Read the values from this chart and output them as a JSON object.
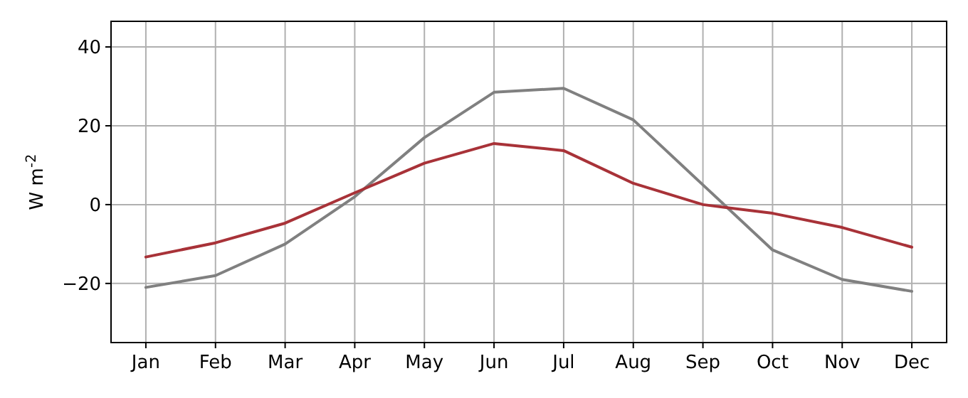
{
  "chart_data": {
    "type": "line",
    "ylabel": "W m$^{-2}$",
    "categories": [
      "Jan",
      "Feb",
      "Mar",
      "Apr",
      "May",
      "Jun",
      "Jul",
      "Aug",
      "Sep",
      "Oct",
      "Nov",
      "Dec"
    ],
    "series": [
      {
        "color": "#808080",
        "values": [
          -21,
          -18,
          -10,
          2,
          17,
          28.5,
          29.5,
          21.5,
          5,
          -11.5,
          -19,
          -22
        ]
      },
      {
        "color": "#a83238",
        "values": [
          -13.3,
          -9.7,
          -4.7,
          3,
          10.5,
          15.5,
          13.7,
          5.4,
          0,
          -2.2,
          -5.8,
          -10.8
        ]
      }
    ],
    "ylim": [
      -35,
      46.5
    ],
    "yticks": [
      -20,
      0,
      20,
      40
    ],
    "grid": true
  }
}
